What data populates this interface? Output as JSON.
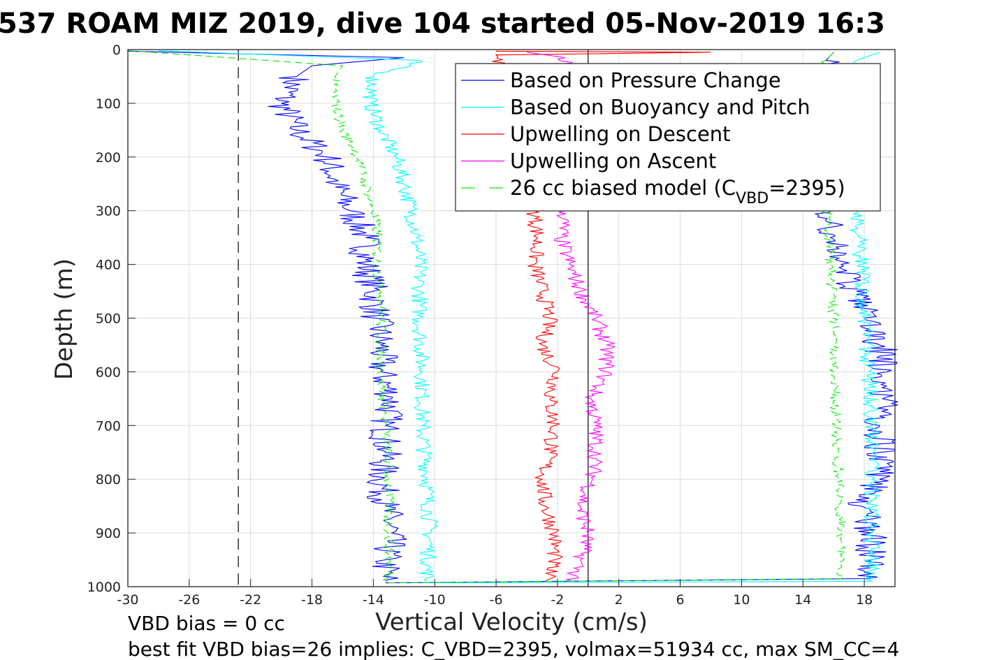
{
  "chart_data": {
    "type": "line",
    "title": "537 ROAM MIZ 2019, dive 104 started 05-Nov-2019 16:3",
    "xlabel": "Vertical Velocity (cm/s)",
    "ylabel": "Depth (m)",
    "xlim": [
      -30,
      20
    ],
    "ylim": [
      0,
      1000
    ],
    "y_reversed": true,
    "grid": true,
    "xticks": [
      "-30",
      "-26",
      "-22",
      "-18",
      "-14",
      "-10",
      "-6",
      "-2",
      "2",
      "6",
      "10",
      "14",
      "18"
    ],
    "yticks": [
      "0",
      "100",
      "200",
      "300",
      "400",
      "500",
      "600",
      "700",
      "800",
      "900",
      "1000"
    ],
    "legend_placement": "top-right",
    "legend": [
      {
        "label": "Based on Pressure Change",
        "color": "#0000ff",
        "style": "solid"
      },
      {
        "label": "Based on Buoyancy and Pitch",
        "color": "#00ffff",
        "style": "solid"
      },
      {
        "label": "Upwelling on Descent",
        "color": "#ff0000",
        "style": "solid"
      },
      {
        "label": "Upwelling on Ascent",
        "color": "#ff00ff",
        "style": "solid"
      },
      {
        "label_main": "26 cc biased model (C",
        "label_sub": "VBD",
        "label_end": "=2395)",
        "color": "#00ee00",
        "style": "dashed"
      }
    ],
    "reference_lines": [
      {
        "name": "vbd-zero-line",
        "x": -22.8,
        "style": "dashed",
        "color": "#000000"
      },
      {
        "name": "zero-velocity-line",
        "x": 0,
        "style": "solid",
        "color": "#000000"
      }
    ],
    "series": [
      {
        "name": "Pressure change (descent)",
        "color": "#0000ff",
        "style": "solid",
        "points": [
          [
            -30,
            3
          ],
          [
            -12,
            15
          ],
          [
            -18,
            30
          ],
          [
            -19,
            50
          ],
          [
            -20,
            100
          ],
          [
            -19,
            150
          ],
          [
            -17,
            200
          ],
          [
            -16.5,
            250
          ],
          [
            -15.5,
            300
          ],
          [
            -14.5,
            350
          ],
          [
            -14.5,
            400
          ],
          [
            -14,
            450
          ],
          [
            -13.8,
            500
          ],
          [
            -13.5,
            550
          ],
          [
            -13.5,
            600
          ],
          [
            -12.8,
            650
          ],
          [
            -13.2,
            700
          ],
          [
            -13.2,
            750
          ],
          [
            -13.5,
            800
          ],
          [
            -13.2,
            850
          ],
          [
            -12.8,
            900
          ],
          [
            -13.2,
            950
          ],
          [
            -13.2,
            990
          ]
        ]
      },
      {
        "name": "Pressure change (ascent)",
        "color": "#0000ff",
        "style": "solid",
        "points": [
          [
            -13.2,
            993
          ],
          [
            18,
            985
          ],
          [
            18.5,
            950
          ],
          [
            18.5,
            900
          ],
          [
            17.8,
            850
          ],
          [
            19,
            800
          ],
          [
            19,
            750
          ],
          [
            19,
            700
          ],
          [
            19.2,
            650
          ],
          [
            19.5,
            600
          ],
          [
            19,
            550
          ],
          [
            18,
            500
          ],
          [
            17.5,
            450
          ],
          [
            16.5,
            400
          ],
          [
            15.8,
            350
          ],
          [
            15.8,
            300
          ],
          [
            15.5,
            20
          ],
          [
            16,
            5
          ]
        ]
      },
      {
        "name": "Buoyancy and pitch (descent)",
        "color": "#00ffff",
        "style": "solid",
        "points": [
          [
            -28,
            2
          ],
          [
            -11,
            20
          ],
          [
            -14,
            50
          ],
          [
            -14.2,
            100
          ],
          [
            -13.5,
            150
          ],
          [
            -12.5,
            200
          ],
          [
            -12,
            250
          ],
          [
            -11.5,
            300
          ],
          [
            -11.2,
            350
          ],
          [
            -11,
            400
          ],
          [
            -11,
            450
          ],
          [
            -11,
            500
          ],
          [
            -10.8,
            600
          ],
          [
            -10.8,
            700
          ],
          [
            -10.5,
            800
          ],
          [
            -10.3,
            900
          ],
          [
            -10.5,
            990
          ]
        ]
      },
      {
        "name": "Buoyancy and pitch (ascent)",
        "color": "#00ffff",
        "style": "solid",
        "points": [
          [
            -10.5,
            993
          ],
          [
            18.5,
            990
          ],
          [
            18.5,
            900
          ],
          [
            18.5,
            800
          ],
          [
            18.5,
            700
          ],
          [
            18.3,
            600
          ],
          [
            18,
            500
          ],
          [
            17.8,
            400
          ],
          [
            17.5,
            300
          ],
          [
            17.5,
            20
          ],
          [
            19,
            5
          ]
        ]
      },
      {
        "name": "Upwelling on Descent",
        "color": "#ff0000",
        "style": "solid",
        "points": [
          [
            -6,
            3
          ],
          [
            8,
            5
          ],
          [
            -6,
            10
          ],
          [
            -3.5,
            300
          ],
          [
            -3.3,
            350
          ],
          [
            -3.5,
            400
          ],
          [
            -3,
            450
          ],
          [
            -2.5,
            500
          ],
          [
            -3,
            550
          ],
          [
            -2,
            600
          ],
          [
            -2.5,
            650
          ],
          [
            -2.2,
            700
          ],
          [
            -2.5,
            750
          ],
          [
            -3,
            800
          ],
          [
            -2.8,
            850
          ],
          [
            -2.2,
            900
          ],
          [
            -2.2,
            950
          ],
          [
            -2.8,
            990
          ]
        ]
      },
      {
        "name": "Upwelling on Ascent",
        "color": "#ff00ff",
        "style": "solid",
        "points": [
          [
            -4,
            5
          ],
          [
            -1.5,
            15
          ],
          [
            -1.5,
            300
          ],
          [
            -1.8,
            350
          ],
          [
            -1.2,
            400
          ],
          [
            -0.5,
            450
          ],
          [
            0.5,
            500
          ],
          [
            1.2,
            550
          ],
          [
            1.2,
            600
          ],
          [
            0.2,
            650
          ],
          [
            0.5,
            700
          ],
          [
            0.5,
            750
          ],
          [
            0.3,
            800
          ],
          [
            -0.5,
            850
          ],
          [
            0,
            900
          ],
          [
            -0.5,
            950
          ],
          [
            -1,
            990
          ]
        ]
      },
      {
        "name": "26 cc biased model (descent)",
        "color": "#00ee00",
        "style": "dashed",
        "points": [
          [
            -30,
            2
          ],
          [
            -16,
            30
          ],
          [
            -16.5,
            50
          ],
          [
            -16.5,
            100
          ],
          [
            -16,
            150
          ],
          [
            -15,
            200
          ],
          [
            -14.5,
            250
          ],
          [
            -14,
            300
          ],
          [
            -13.7,
            350
          ],
          [
            -13.8,
            400
          ],
          [
            -13.5,
            450
          ],
          [
            -13.5,
            500
          ],
          [
            -13.5,
            600
          ],
          [
            -13.2,
            700
          ],
          [
            -13,
            800
          ],
          [
            -13,
            900
          ],
          [
            -13,
            990
          ]
        ]
      },
      {
        "name": "26 cc biased model (ascent)",
        "color": "#00ee00",
        "style": "dashed",
        "points": [
          [
            -13,
            993
          ],
          [
            16.5,
            985
          ],
          [
            16.5,
            900
          ],
          [
            16.3,
            800
          ],
          [
            16.2,
            700
          ],
          [
            16,
            600
          ],
          [
            16,
            500
          ],
          [
            15.8,
            400
          ],
          [
            15.5,
            300
          ],
          [
            15.5,
            20
          ],
          [
            16,
            5
          ]
        ]
      }
    ]
  },
  "annotations": {
    "vbd_bias": "VBD bias = 0 cc",
    "best_fit": "best fit VBD bias=26 implies: C_VBD=2395, volmax=51934 cc, max SM_CC=4"
  }
}
